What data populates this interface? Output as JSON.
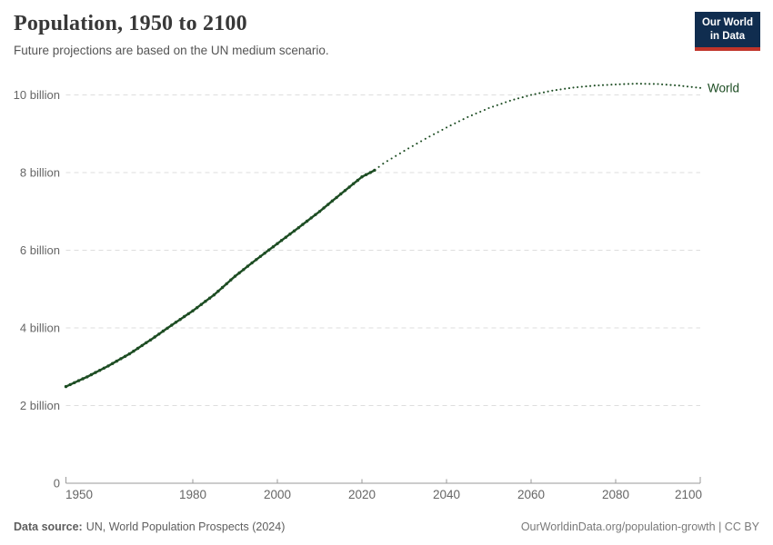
{
  "header": {
    "title": "Population, 1950 to 2100",
    "subtitle": "Future projections are based on the UN medium scenario."
  },
  "logo": {
    "line1": "Our World",
    "line2": "in Data",
    "bg_color": "#102d4f",
    "accent_color": "#c0342a"
  },
  "footer": {
    "source_label": "Data source:",
    "source_text": "UN, World Population Prospects (2024)",
    "link_text": "OurWorldinData.org/population-growth | CC BY"
  },
  "chart_data": {
    "type": "line",
    "title": "Population, 1950 to 2100",
    "xlabel": "",
    "ylabel": "",
    "unit": "billion people",
    "xlim": [
      1950,
      2100
    ],
    "ylim": [
      0,
      10.6
    ],
    "grid": true,
    "legend_position": "end-of-line-label",
    "line_color": "#1d4d23",
    "grid_color": "#dedede",
    "axis_color": "#9a9a9a",
    "tick_text_color": "#666666",
    "x_ticks": [
      1950,
      1980,
      2000,
      2020,
      2040,
      2060,
      2080,
      2100
    ],
    "y_ticks": [
      {
        "value": 0,
        "label": "0"
      },
      {
        "value": 2,
        "label": "2 billion"
      },
      {
        "value": 4,
        "label": "4 billion"
      },
      {
        "value": 6,
        "label": "6 billion"
      },
      {
        "value": 8,
        "label": "8 billion"
      },
      {
        "value": 10,
        "label": "10 billion"
      }
    ],
    "series": [
      {
        "name": "World",
        "historical": [
          [
            1950,
            2.49
          ],
          [
            1955,
            2.74
          ],
          [
            1960,
            3.02
          ],
          [
            1965,
            3.33
          ],
          [
            1970,
            3.69
          ],
          [
            1975,
            4.07
          ],
          [
            1980,
            4.44
          ],
          [
            1985,
            4.85
          ],
          [
            1990,
            5.33
          ],
          [
            1995,
            5.76
          ],
          [
            2000,
            6.17
          ],
          [
            2005,
            6.58
          ],
          [
            2010,
            7.0
          ],
          [
            2015,
            7.45
          ],
          [
            2020,
            7.89
          ],
          [
            2023,
            8.06
          ]
        ],
        "projection": [
          [
            2023,
            8.06
          ],
          [
            2025,
            8.23
          ],
          [
            2030,
            8.56
          ],
          [
            2035,
            8.87
          ],
          [
            2040,
            9.16
          ],
          [
            2045,
            9.43
          ],
          [
            2050,
            9.66
          ],
          [
            2055,
            9.85
          ],
          [
            2060,
            10.0
          ],
          [
            2065,
            10.11
          ],
          [
            2070,
            10.19
          ],
          [
            2075,
            10.24
          ],
          [
            2080,
            10.27
          ],
          [
            2085,
            10.29
          ],
          [
            2090,
            10.28
          ],
          [
            2095,
            10.24
          ],
          [
            2100,
            10.18
          ]
        ]
      }
    ]
  }
}
